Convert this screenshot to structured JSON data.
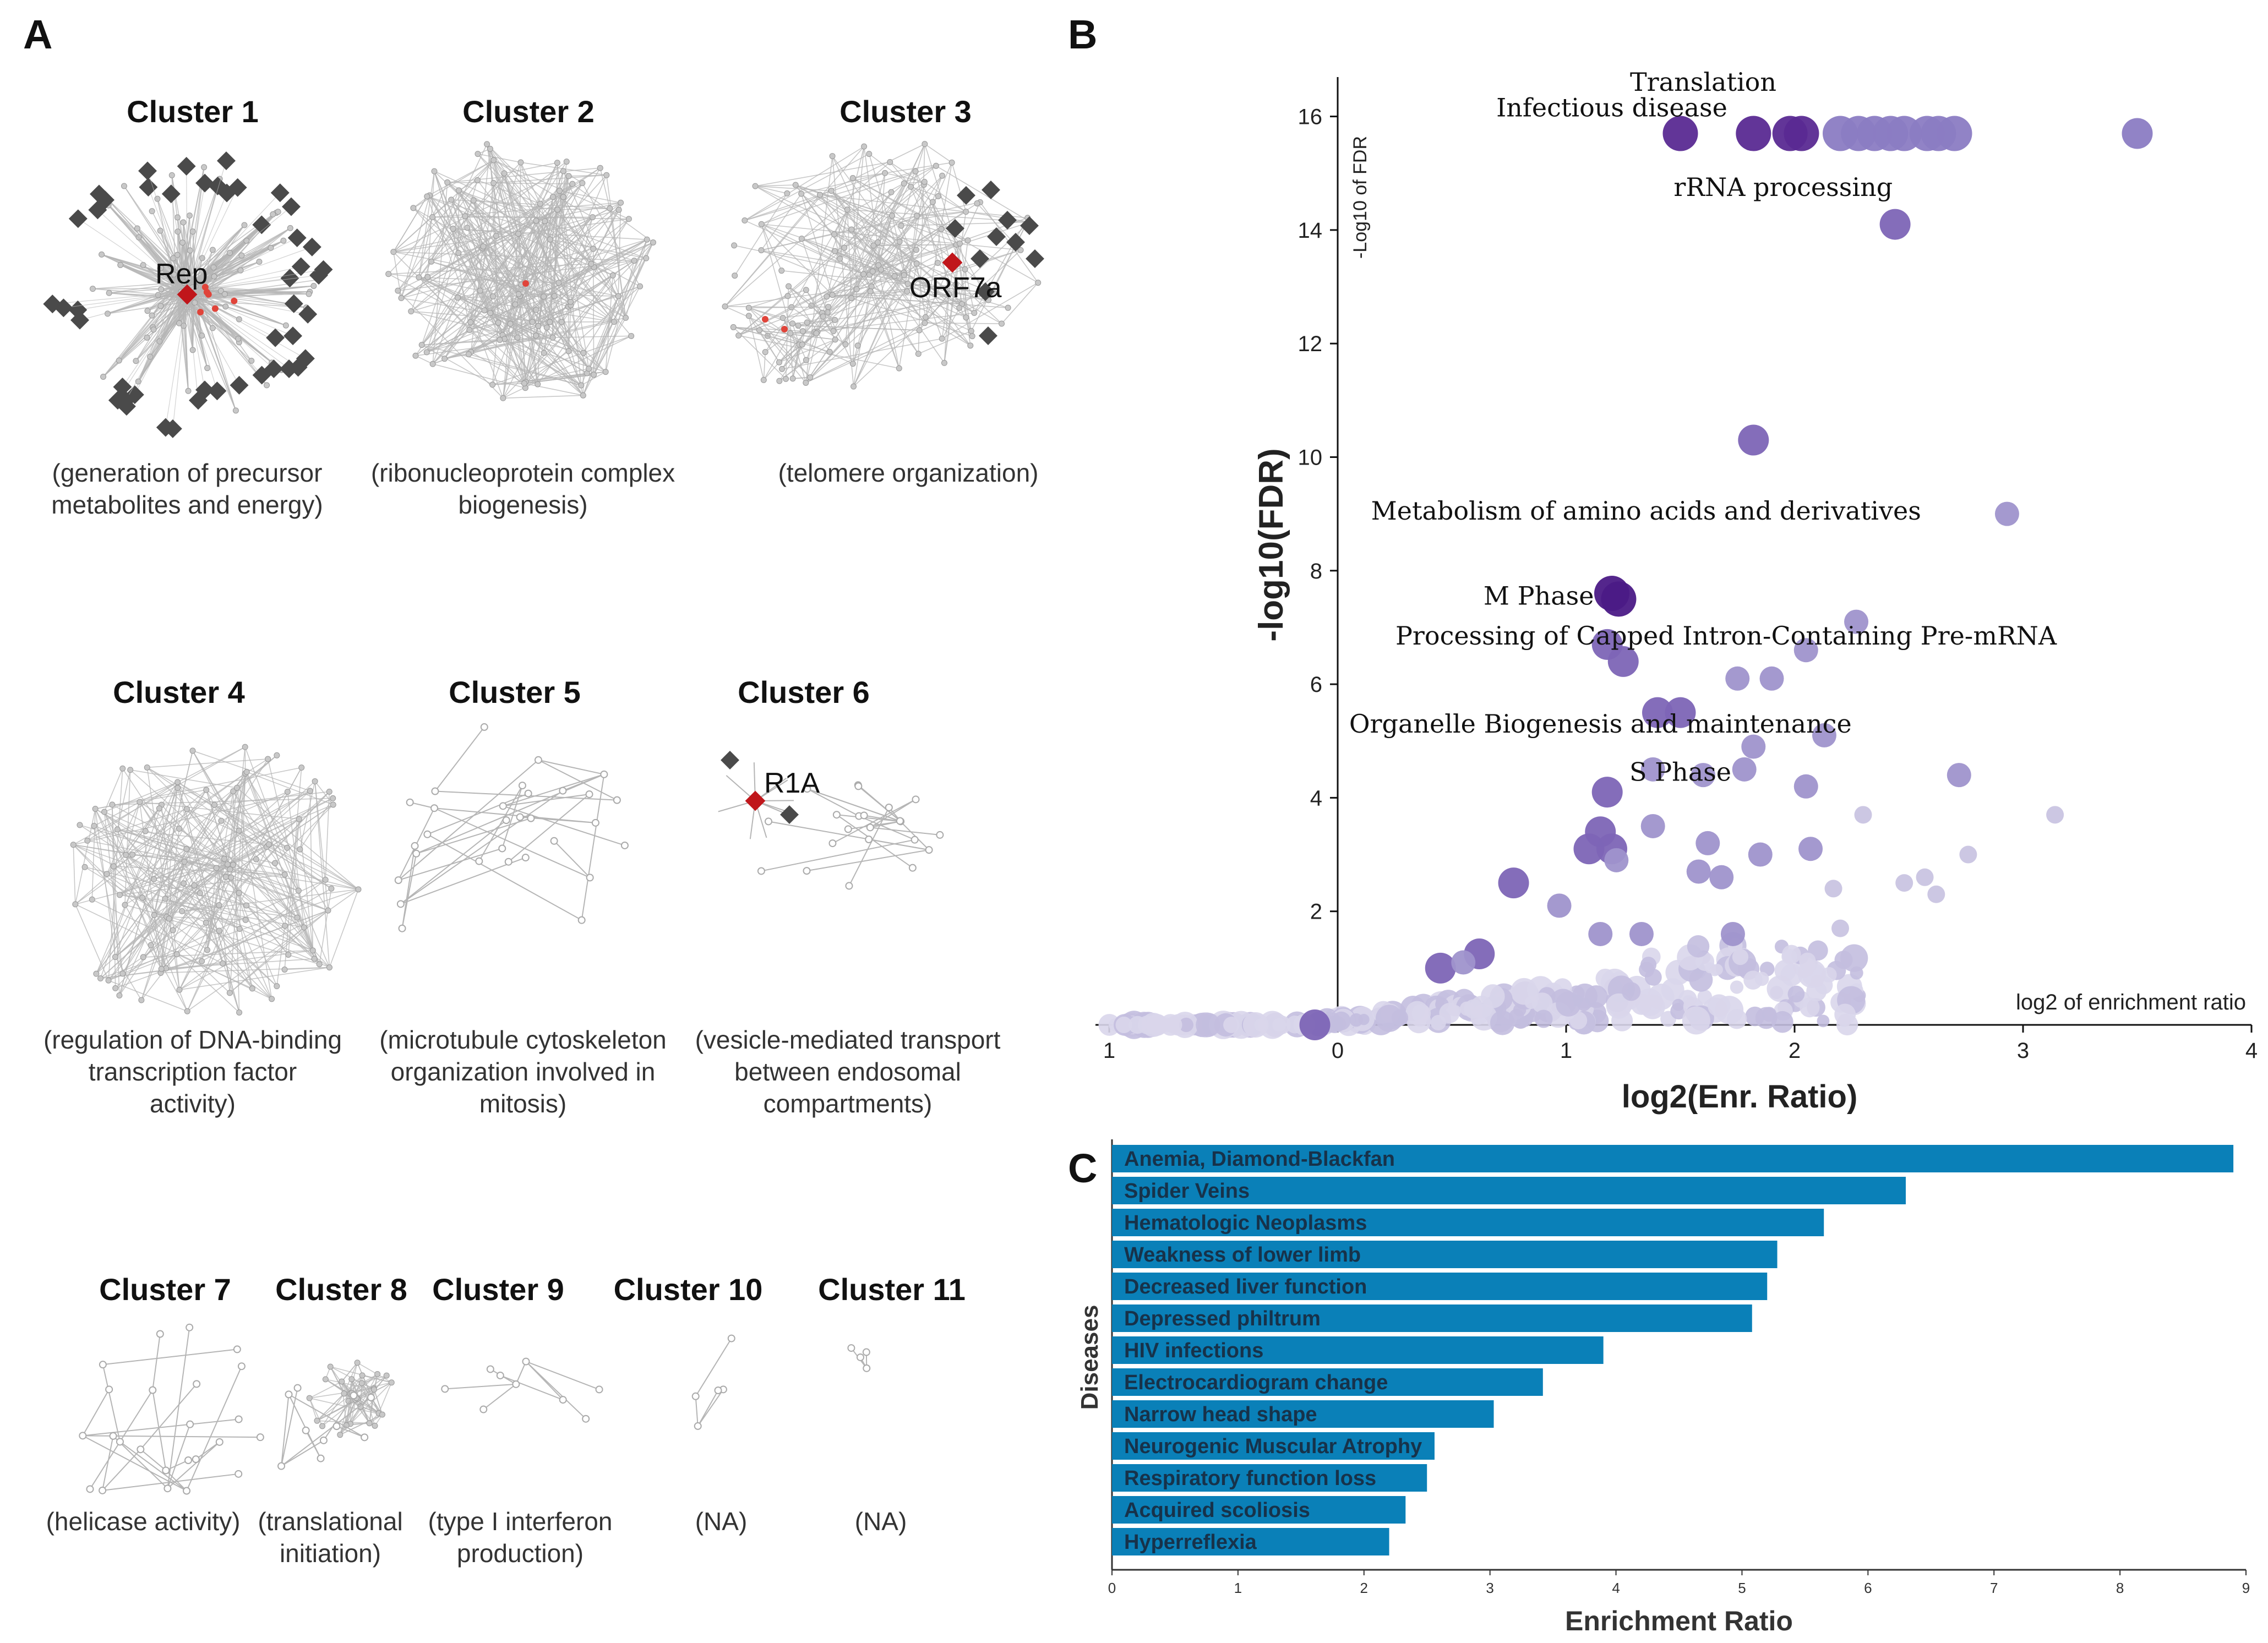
{
  "panels": {
    "a": "A",
    "b": "B",
    "c": "C"
  },
  "clusters": [
    {
      "title": "Cluster 1",
      "caption": "(generation of precursor\nmetabolites and energy)",
      "node_label": "Rep"
    },
    {
      "title": "Cluster 2",
      "caption": "(ribonucleoprotein complex\nbiogenesis)"
    },
    {
      "title": "Cluster 3",
      "caption": "(telomere organization)",
      "node_label": "ORF7a"
    },
    {
      "title": "Cluster 4",
      "caption": "(regulation of DNA-binding\ntranscription factor\nactivity)"
    },
    {
      "title": "Cluster 5",
      "caption": "(microtubule cytoskeleton\norganization involved in\nmitosis)"
    },
    {
      "title": "Cluster 6",
      "caption": "(vesicle-mediated transport\nbetween endosomal\ncompartments)",
      "node_label": "R1A"
    },
    {
      "title": "Cluster 7",
      "caption": "(helicase activity)"
    },
    {
      "title": "Cluster 8",
      "caption": "(translational\ninitiation)"
    },
    {
      "title": "Cluster 9",
      "caption": "(type I interferon\nproduction)"
    },
    {
      "title": "Cluster 10",
      "caption": "(NA)"
    },
    {
      "title": "Cluster 11",
      "caption": "(NA)"
    }
  ],
  "colors": {
    "hub_node": "#c0161b",
    "viral_node": "#4a4a4a",
    "edge": "#b5b5b5",
    "bar": "#0a80b8",
    "volcano_dark": "#4b1a86",
    "volcano_light": "#dcd9ec"
  },
  "chart_data": [
    {
      "type": "scatter",
      "title": "",
      "xlabel": "log2(Enr. Ratio)",
      "ylabel": "-log10(FDR)",
      "inner_ylabel": "-Log10 of FDR",
      "inner_xlabel": "log2 of enrichment ratio",
      "xlim": [
        -1,
        4
      ],
      "ylim": [
        0,
        16.5
      ],
      "xticks": [
        "1",
        "0",
        "1",
        "2",
        "3",
        "4"
      ],
      "yticks": [
        "2",
        "4",
        "6",
        "8",
        "10",
        "12",
        "14",
        "16"
      ],
      "annotations": [
        {
          "text": "Translation",
          "x": 1.6,
          "y": 16.45
        },
        {
          "text": "Infectious disease",
          "x": 1.2,
          "y": 16.0
        },
        {
          "text": "rRNA processing",
          "x": 1.95,
          "y": 14.6
        },
        {
          "text": "Metabolism of amino acids and derivatives",
          "x": 1.35,
          "y": 8.9
        },
        {
          "text": "M Phase",
          "x": 0.88,
          "y": 7.4
        },
        {
          "text": "Processing of Capped Intron-Containing Pre-mRNA",
          "x": 1.7,
          "y": 6.7
        },
        {
          "text": "Organelle Biogenesis and maintenance",
          "x": 1.15,
          "y": 5.15
        },
        {
          "text": "S Phase",
          "x": 1.5,
          "y": 4.3
        }
      ],
      "points": [
        {
          "x": 1.5,
          "y": 15.7,
          "s": 3
        },
        {
          "x": 1.82,
          "y": 15.7,
          "s": 3
        },
        {
          "x": 1.98,
          "y": 15.7,
          "s": 3
        },
        {
          "x": 2.03,
          "y": 15.7,
          "s": 3
        },
        {
          "x": 2.2,
          "y": 15.7,
          "s": 3
        },
        {
          "x": 2.28,
          "y": 15.7,
          "s": 3
        },
        {
          "x": 2.35,
          "y": 15.7,
          "s": 3
        },
        {
          "x": 2.42,
          "y": 15.7,
          "s": 3
        },
        {
          "x": 2.48,
          "y": 15.7,
          "s": 3
        },
        {
          "x": 2.58,
          "y": 15.7,
          "s": 3
        },
        {
          "x": 2.63,
          "y": 15.7,
          "s": 3
        },
        {
          "x": 2.7,
          "y": 15.7,
          "s": 3
        },
        {
          "x": 3.5,
          "y": 15.7,
          "s": 2
        },
        {
          "x": 2.44,
          "y": 14.1,
          "s": 2
        },
        {
          "x": 1.82,
          "y": 10.3,
          "s": 2
        },
        {
          "x": 2.93,
          "y": 9.0,
          "s": 1
        },
        {
          "x": 1.2,
          "y": 7.6,
          "s": 3
        },
        {
          "x": 1.23,
          "y": 7.5,
          "s": 3
        },
        {
          "x": 1.18,
          "y": 6.7,
          "s": 2
        },
        {
          "x": 1.25,
          "y": 6.4,
          "s": 2
        },
        {
          "x": 2.27,
          "y": 7.1,
          "s": 1
        },
        {
          "x": 2.05,
          "y": 6.6,
          "s": 1
        },
        {
          "x": 1.75,
          "y": 6.1,
          "s": 1
        },
        {
          "x": 1.9,
          "y": 6.1,
          "s": 1
        },
        {
          "x": 1.4,
          "y": 5.5,
          "s": 2
        },
        {
          "x": 1.5,
          "y": 5.5,
          "s": 2
        },
        {
          "x": 1.82,
          "y": 4.9,
          "s": 1
        },
        {
          "x": 2.13,
          "y": 5.1,
          "s": 1
        },
        {
          "x": 1.38,
          "y": 4.5,
          "s": 1
        },
        {
          "x": 1.6,
          "y": 4.4,
          "s": 1
        },
        {
          "x": 1.78,
          "y": 4.5,
          "s": 1
        },
        {
          "x": 1.18,
          "y": 4.1,
          "s": 2
        },
        {
          "x": 2.05,
          "y": 4.2,
          "s": 1
        },
        {
          "x": 2.72,
          "y": 4.4,
          "s": 1
        },
        {
          "x": 3.14,
          "y": 3.7,
          "s": 0
        },
        {
          "x": 2.3,
          "y": 3.7,
          "s": 0
        },
        {
          "x": 1.15,
          "y": 3.4,
          "s": 2
        },
        {
          "x": 1.1,
          "y": 3.1,
          "s": 2
        },
        {
          "x": 1.2,
          "y": 3.1,
          "s": 2
        },
        {
          "x": 1.22,
          "y": 2.9,
          "s": 1
        },
        {
          "x": 1.38,
          "y": 3.5,
          "s": 1
        },
        {
          "x": 1.62,
          "y": 3.2,
          "s": 1
        },
        {
          "x": 1.85,
          "y": 3.0,
          "s": 1
        },
        {
          "x": 2.07,
          "y": 3.1,
          "s": 1
        },
        {
          "x": 1.58,
          "y": 2.7,
          "s": 1
        },
        {
          "x": 1.68,
          "y": 2.6,
          "s": 1
        },
        {
          "x": 2.57,
          "y": 2.6,
          "s": 0
        },
        {
          "x": 2.76,
          "y": 3.0,
          "s": 0
        },
        {
          "x": 2.48,
          "y": 2.5,
          "s": 0
        },
        {
          "x": 2.62,
          "y": 2.3,
          "s": 0
        },
        {
          "x": 2.17,
          "y": 2.4,
          "s": 0
        },
        {
          "x": 0.77,
          "y": 2.5,
          "s": 2
        },
        {
          "x": 0.97,
          "y": 2.1,
          "s": 1
        },
        {
          "x": 1.15,
          "y": 1.6,
          "s": 1
        },
        {
          "x": 1.33,
          "y": 1.6,
          "s": 1
        },
        {
          "x": 1.73,
          "y": 1.6,
          "s": 1
        },
        {
          "x": 2.2,
          "y": 1.7,
          "s": 0
        },
        {
          "x": 0.62,
          "y": 1.25,
          "s": 2
        },
        {
          "x": 0.45,
          "y": 1.0,
          "s": 2
        },
        {
          "x": 0.55,
          "y": 1.1,
          "s": 1
        },
        {
          "x": -0.1,
          "y": 0.0,
          "s": 2
        }
      ]
    },
    {
      "type": "bar",
      "orientation": "horizontal",
      "title": "",
      "xlabel": "Enrichment Ratio",
      "ylabel": "Diseases",
      "xlim": [
        0,
        9
      ],
      "xticks": [
        "0",
        "1",
        "2",
        "3",
        "4",
        "5",
        "6",
        "7",
        "8",
        "9"
      ],
      "categories": [
        "Anemia, Diamond-Blackfan",
        "Spider Veins",
        "Hematologic Neoplasms",
        "Weakness of lower limb",
        "Decreased liver function",
        "Depressed philtrum",
        "HIV infections",
        "Electrocardiogram change",
        "Narrow head shape",
        "Neurogenic Muscular Atrophy",
        "Respiratory function loss",
        "Acquired scoliosis",
        "Hyperreflexia"
      ],
      "values": [
        8.9,
        6.3,
        5.65,
        5.28,
        5.2,
        5.08,
        3.9,
        3.42,
        3.03,
        2.56,
        2.5,
        2.33,
        2.2
      ]
    }
  ]
}
